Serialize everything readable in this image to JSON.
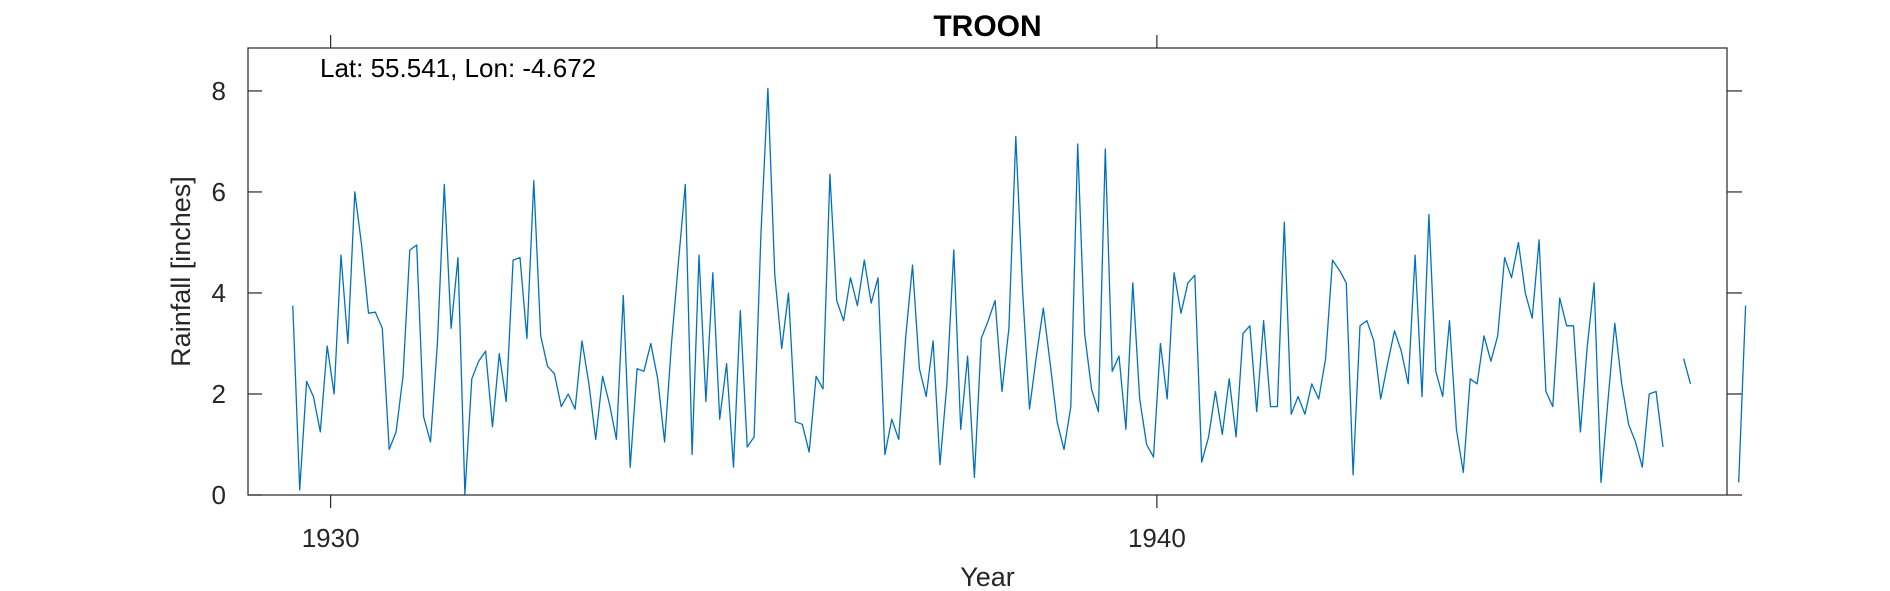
{
  "chart_data": {
    "type": "line",
    "title": "TROON",
    "annotation": "Lat: 55.541, Lon: -4.672",
    "xlabel": "Year",
    "ylabel": "Rainfall [inches]",
    "xlim": [
      1929.0,
      1946.9
    ],
    "ylim": [
      0,
      8.85
    ],
    "x_ticks": [
      1930,
      1940
    ],
    "y_ticks": [
      0,
      2,
      4,
      6,
      8
    ],
    "grid": false,
    "legend": "none",
    "series": [
      {
        "color": "#0072BD",
        "x_start": 1929.542,
        "x_step_months": 1,
        "values": [
          3.75,
          0.1,
          2.25,
          1.95,
          1.25,
          2.95,
          2.0,
          4.75,
          3.0,
          6.0,
          4.95,
          3.6,
          3.62,
          3.3,
          0.9,
          1.25,
          2.35,
          4.85,
          4.95,
          1.55,
          1.05,
          3.0,
          6.15,
          3.3,
          4.7,
          0.02,
          2.3,
          2.65,
          2.85,
          1.35,
          2.8,
          1.85,
          4.65,
          4.7,
          3.1,
          6.22,
          3.15,
          2.55,
          2.4,
          1.75,
          2.0,
          1.7,
          3.05,
          2.2,
          1.1,
          2.35,
          1.8,
          1.1,
          3.95,
          0.55,
          2.5,
          2.45,
          3.0,
          2.3,
          1.05,
          3.0,
          4.6,
          6.15,
          0.8,
          4.75,
          1.85,
          4.4,
          1.5,
          2.6,
          0.55,
          3.65,
          0.95,
          1.15,
          5.2,
          8.05,
          4.35,
          2.9,
          4.0,
          1.45,
          1.4,
          0.85,
          2.35,
          2.1,
          6.35,
          3.85,
          3.45,
          4.3,
          3.75,
          4.65,
          3.8,
          4.3,
          0.8,
          1.5,
          1.1,
          3.1,
          4.55,
          2.5,
          1.95,
          3.05,
          0.6,
          2.2,
          4.85,
          1.3,
          2.75,
          0.35,
          3.1,
          3.45,
          3.85,
          2.05,
          3.3,
          7.1,
          4.05,
          1.7,
          2.75,
          3.7,
          2.6,
          1.45,
          0.9,
          1.75,
          6.95,
          3.2,
          2.1,
          1.65,
          6.85,
          2.45,
          2.75,
          1.3,
          4.2,
          1.9,
          1.0,
          0.75,
          3.0,
          1.9,
          4.4,
          3.6,
          4.2,
          4.35,
          0.65,
          1.15,
          2.05,
          1.2,
          2.3,
          1.15,
          3.2,
          3.35,
          1.65,
          3.45,
          1.75,
          1.75,
          5.4,
          1.6,
          1.95,
          1.6,
          2.2,
          1.9,
          2.7,
          4.65,
          4.45,
          4.2,
          0.4,
          3.35,
          3.45,
          3.05,
          1.9,
          2.6,
          3.25,
          2.85,
          2.2,
          4.75,
          1.95,
          5.55,
          2.45,
          1.95,
          3.45,
          1.3,
          0.45,
          2.3,
          2.2,
          3.15,
          2.65,
          3.15,
          4.7,
          4.3,
          5.0,
          4.0,
          3.5,
          5.05,
          2.05,
          1.75,
          3.9,
          3.35,
          3.35,
          1.25,
          2.95,
          4.2,
          0.25,
          1.85,
          3.4,
          2.2,
          1.4,
          1.05,
          0.55,
          2.0,
          2.05,
          0.95,
          null,
          null,
          2.7,
          2.2,
          null,
          null,
          null,
          null,
          null,
          null,
          0.25,
          3.75
        ]
      }
    ]
  }
}
